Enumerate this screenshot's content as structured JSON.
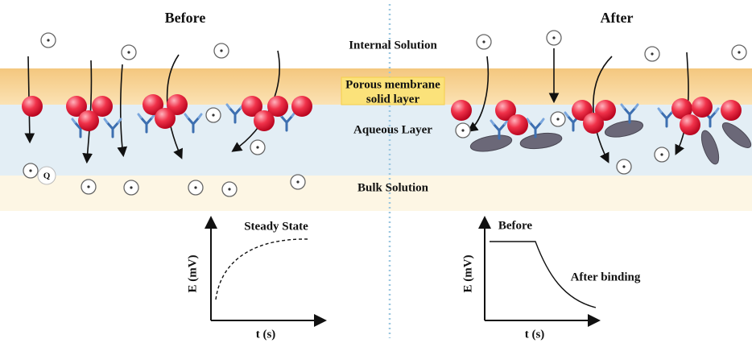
{
  "panels": {
    "before": "Before",
    "after": "After"
  },
  "layers": {
    "internal": "Internal Solution",
    "membrane": [
      "Porous membrane",
      "solid layer"
    ],
    "aqueous": "Aqueous Layer",
    "bulk": "Bulk Solution"
  },
  "ion_label": "Q",
  "graphs": [
    {
      "curve_label": "Steady State",
      "y_axis": "E (mV)",
      "x_axis": "t (s)"
    },
    {
      "start_label": "Before",
      "end_label": "After binding",
      "y_axis": "E (mV)",
      "x_axis": "t (s)"
    }
  ]
}
